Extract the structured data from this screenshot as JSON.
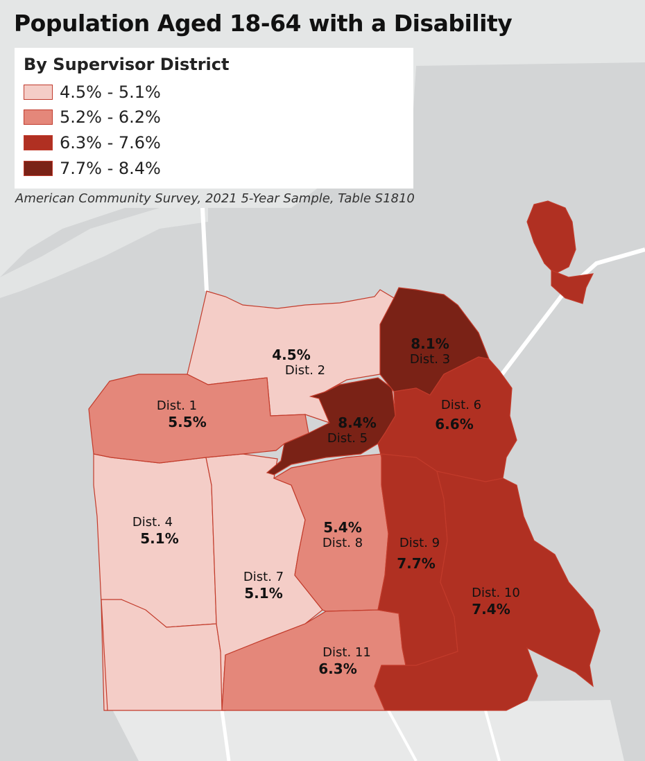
{
  "title": "Population Aged 18-64 with a Disability",
  "legend": {
    "heading": "By Supervisor District",
    "classes": [
      {
        "label": "4.5% - 5.1%",
        "color": "#f4cdc7"
      },
      {
        "label": "5.2% - 6.2%",
        "color": "#e4877a"
      },
      {
        "label": "6.3% - 7.6%",
        "color": "#b03022"
      },
      {
        "label": "7.7% - 8.4%",
        "color": "#7a2216"
      }
    ]
  },
  "source": "American Community Survey, 2021 5-Year Sample, Table S1810",
  "districts": [
    {
      "name": "Dist. 1",
      "value": "5.5%"
    },
    {
      "name": "Dist. 2",
      "value": "4.5%"
    },
    {
      "name": "Dist. 3",
      "value": "8.1%"
    },
    {
      "name": "Dist. 4",
      "value": "5.1%"
    },
    {
      "name": "Dist. 5",
      "value": "8.4%"
    },
    {
      "name": "Dist. 6",
      "value": "6.6%"
    },
    {
      "name": "Dist. 7",
      "value": "5.1%"
    },
    {
      "name": "Dist. 8",
      "value": "5.4%"
    },
    {
      "name": "Dist. 9",
      "value": "7.7%"
    },
    {
      "name": "Dist. 10",
      "value": "7.4%"
    },
    {
      "name": "Dist. 11",
      "value": "6.3%"
    }
  ]
}
